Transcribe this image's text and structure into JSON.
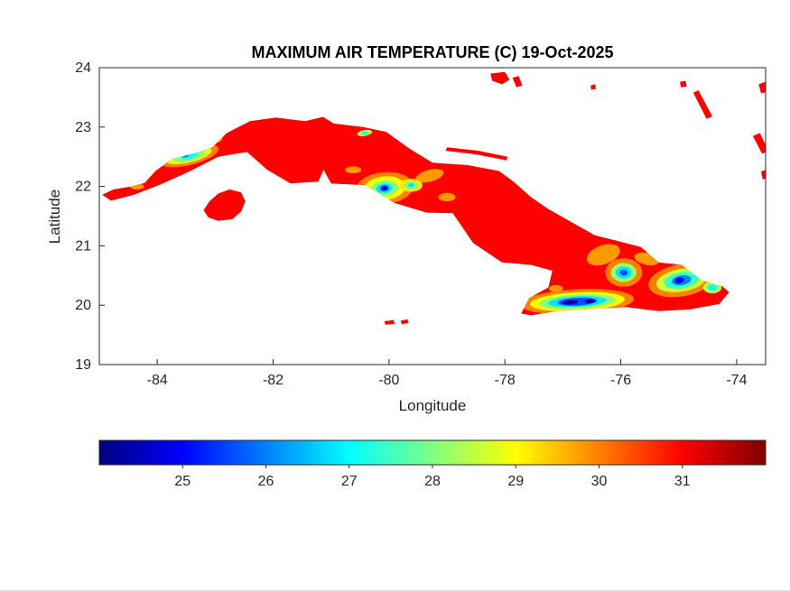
{
  "chart_data": {
    "type": "heatmap",
    "title": "MAXIMUM AIR TEMPERATURE (C) 19-Oct-2025",
    "xlabel": "Longitude",
    "ylabel": "Latitude",
    "xlim": [
      -85,
      -73.5
    ],
    "ylim": [
      19,
      24
    ],
    "xticks": [
      -84,
      -82,
      -80,
      -78,
      -76,
      -74
    ],
    "yticks": [
      19,
      20,
      21,
      22,
      23,
      24
    ],
    "grid": false,
    "legend_position": "colorbar-bottom",
    "colorbar": {
      "orientation": "horizontal",
      "colormap": "jet",
      "min": 24,
      "max": 32,
      "ticks": [
        25,
        26,
        27,
        28,
        29,
        30,
        31
      ]
    },
    "region": "Cuba",
    "base_value": 31,
    "map": {
      "outline": [
        [
          -84.95,
          21.86
        ],
        [
          -84.75,
          21.95
        ],
        [
          -84.45,
          22.0
        ],
        [
          -84.22,
          22.06
        ],
        [
          -84.03,
          22.26
        ],
        [
          -83.75,
          22.46
        ],
        [
          -83.35,
          22.56
        ],
        [
          -83.05,
          22.66
        ],
        [
          -82.8,
          22.9
        ],
        [
          -82.4,
          23.1
        ],
        [
          -81.95,
          23.16
        ],
        [
          -81.45,
          23.1
        ],
        [
          -81.14,
          23.17
        ],
        [
          -80.95,
          23.06
        ],
        [
          -80.45,
          23.0
        ],
        [
          -80.05,
          22.92
        ],
        [
          -79.65,
          22.64
        ],
        [
          -79.25,
          22.4
        ],
        [
          -78.65,
          22.36
        ],
        [
          -78.1,
          22.26
        ],
        [
          -77.85,
          22.08
        ],
        [
          -77.55,
          21.82
        ],
        [
          -77.25,
          21.62
        ],
        [
          -76.85,
          21.4
        ],
        [
          -76.45,
          21.18
        ],
        [
          -76.05,
          21.08
        ],
        [
          -75.65,
          20.98
        ],
        [
          -75.35,
          20.72
        ],
        [
          -74.95,
          20.68
        ],
        [
          -74.6,
          20.42
        ],
        [
          -74.25,
          20.32
        ],
        [
          -74.13,
          20.22
        ],
        [
          -74.3,
          20.02
        ],
        [
          -74.8,
          19.93
        ],
        [
          -75.35,
          19.9
        ],
        [
          -75.9,
          19.97
        ],
        [
          -76.45,
          19.94
        ],
        [
          -77.1,
          19.9
        ],
        [
          -77.55,
          19.83
        ],
        [
          -77.72,
          19.86
        ],
        [
          -77.58,
          20.12
        ],
        [
          -77.25,
          20.3
        ],
        [
          -77.18,
          20.58
        ],
        [
          -77.55,
          20.68
        ],
        [
          -78.05,
          20.72
        ],
        [
          -78.55,
          21.05
        ],
        [
          -78.9,
          21.55
        ],
        [
          -79.35,
          21.56
        ],
        [
          -79.9,
          21.72
        ],
        [
          -80.4,
          22.02
        ],
        [
          -81.0,
          22.05
        ],
        [
          -81.13,
          22.28
        ],
        [
          -81.22,
          22.08
        ],
        [
          -81.7,
          22.05
        ],
        [
          -82.1,
          22.28
        ],
        [
          -82.45,
          22.58
        ],
        [
          -82.95,
          22.5
        ],
        [
          -83.45,
          22.25
        ],
        [
          -83.95,
          22.03
        ],
        [
          -84.4,
          21.86
        ],
        [
          -84.8,
          21.76
        ]
      ],
      "isla_de_la_juventud": [
        [
          -83.2,
          21.6
        ],
        [
          -83.1,
          21.75
        ],
        [
          -82.95,
          21.88
        ],
        [
          -82.75,
          21.95
        ],
        [
          -82.55,
          21.9
        ],
        [
          -82.48,
          21.75
        ],
        [
          -82.55,
          21.58
        ],
        [
          -82.7,
          21.45
        ],
        [
          -82.95,
          21.42
        ],
        [
          -83.12,
          21.48
        ]
      ],
      "small_islands": [
        [
          [
            -78.25,
            23.9
          ],
          [
            -78.0,
            23.93
          ],
          [
            -77.92,
            23.8
          ],
          [
            -78.05,
            23.72
          ],
          [
            -78.22,
            23.78
          ]
        ],
        [
          [
            -77.87,
            23.83
          ],
          [
            -77.76,
            23.86
          ],
          [
            -77.7,
            23.7
          ],
          [
            -77.8,
            23.67
          ]
        ],
        [
          [
            -76.52,
            23.7
          ],
          [
            -76.44,
            23.72
          ],
          [
            -76.43,
            23.64
          ],
          [
            -76.51,
            23.63
          ]
        ],
        [
          [
            -74.98,
            23.76
          ],
          [
            -74.88,
            23.78
          ],
          [
            -74.86,
            23.68
          ],
          [
            -74.96,
            23.67
          ]
        ],
        [
          [
            -74.75,
            23.58
          ],
          [
            -74.66,
            23.62
          ],
          [
            -74.42,
            23.18
          ],
          [
            -74.52,
            23.14
          ]
        ],
        [
          [
            -73.62,
            23.72
          ],
          [
            -73.45,
            23.78
          ],
          [
            -73.4,
            23.6
          ],
          [
            -73.58,
            23.57
          ]
        ],
        [
          [
            -73.72,
            22.85
          ],
          [
            -73.6,
            22.9
          ],
          [
            -73.45,
            22.6
          ],
          [
            -73.56,
            22.55
          ]
        ],
        [
          [
            -73.58,
            22.25
          ],
          [
            -73.45,
            22.3
          ],
          [
            -73.42,
            22.15
          ],
          [
            -73.55,
            22.12
          ]
        ],
        [
          [
            -80.08,
            19.73
          ],
          [
            -79.92,
            19.75
          ],
          [
            -79.9,
            19.69
          ],
          [
            -80.06,
            19.67
          ]
        ],
        [
          [
            -79.8,
            19.74
          ],
          [
            -79.68,
            19.76
          ],
          [
            -79.66,
            19.7
          ],
          [
            -79.78,
            19.68
          ]
        ],
        [
          [
            -79.0,
            22.66
          ],
          [
            -78.45,
            22.6
          ],
          [
            -77.95,
            22.5
          ],
          [
            -77.97,
            22.44
          ],
          [
            -78.5,
            22.54
          ],
          [
            -79.02,
            22.6
          ]
        ]
      ]
    },
    "warm_patches": [
      {
        "t": 29.8,
        "cx": -79.3,
        "cy": 22.18,
        "rx": 0.25,
        "ry": 0.1,
        "rot": -15
      },
      {
        "t": 29.8,
        "cx": -79.0,
        "cy": 21.82,
        "rx": 0.15,
        "ry": 0.07,
        "rot": 0
      },
      {
        "t": 29.8,
        "cx": -80.62,
        "cy": 22.28,
        "rx": 0.14,
        "ry": 0.06,
        "rot": 0
      },
      {
        "t": 29.8,
        "cx": -76.3,
        "cy": 20.85,
        "rx": 0.3,
        "ry": 0.16,
        "rot": -20
      },
      {
        "t": 29.8,
        "cx": -75.55,
        "cy": 20.78,
        "rx": 0.22,
        "ry": 0.1,
        "rot": 12
      },
      {
        "t": 29.8,
        "cx": -77.12,
        "cy": 20.28,
        "rx": 0.12,
        "ry": 0.06,
        "rot": 0
      },
      {
        "t": 29.8,
        "cx": -83.05,
        "cy": 22.78,
        "rx": 0.18,
        "ry": 0.07,
        "rot": -12
      },
      {
        "t": 29.8,
        "cx": -84.35,
        "cy": 22.0,
        "rx": 0.12,
        "ry": 0.05,
        "rot": 0
      }
    ],
    "cool_regions": [
      {
        "name": "west-sierra",
        "cx": -83.45,
        "cy": 22.52,
        "rot": -14,
        "layers": [
          {
            "t": 30.0,
            "rx": 0.52,
            "ry": 0.16
          },
          {
            "t": 28.8,
            "rx": 0.4,
            "ry": 0.115
          },
          {
            "t": 28.0,
            "rx": 0.28,
            "ry": 0.085
          },
          {
            "t": 27.0,
            "rx": 0.14,
            "ry": 0.05
          },
          {
            "t": 26.2,
            "rx": 0.06,
            "ry": 0.03,
            "dx": -0.06
          }
        ]
      },
      {
        "name": "escambray",
        "cx": -80.08,
        "cy": 21.97,
        "rot": -6,
        "layers": [
          {
            "t": 30.0,
            "rx": 0.5,
            "ry": 0.27
          },
          {
            "t": 29.0,
            "rx": 0.36,
            "ry": 0.2
          },
          {
            "t": 28.0,
            "rx": 0.24,
            "ry": 0.13
          },
          {
            "t": 26.8,
            "rx": 0.14,
            "ry": 0.08
          },
          {
            "t": 25.4,
            "rx": 0.075,
            "ry": 0.05
          },
          {
            "t": 24.5,
            "rx": 0.035,
            "ry": 0.025
          }
        ]
      },
      {
        "name": "escambray-east",
        "cx": -79.62,
        "cy": 22.02,
        "rot": 0,
        "layers": [
          {
            "t": 29.2,
            "rx": 0.2,
            "ry": 0.11
          },
          {
            "t": 28.0,
            "rx": 0.12,
            "ry": 0.065
          },
          {
            "t": 26.8,
            "rx": 0.05,
            "ry": 0.035
          }
        ]
      },
      {
        "name": "sierra-maestra",
        "cx": -76.75,
        "cy": 20.06,
        "rot": -3,
        "layers": [
          {
            "t": 30.0,
            "rx": 0.98,
            "ry": 0.21
          },
          {
            "t": 29.0,
            "rx": 0.82,
            "ry": 0.16
          },
          {
            "t": 28.0,
            "rx": 0.66,
            "ry": 0.12
          },
          {
            "t": 26.8,
            "rx": 0.5,
            "ry": 0.09
          },
          {
            "t": 25.6,
            "rx": 0.34,
            "ry": 0.065
          },
          {
            "t": 24.4,
            "rx": 0.14,
            "ry": 0.04,
            "dx": -0.13,
            "dy": -0.01
          },
          {
            "t": 24.4,
            "rx": 0.09,
            "ry": 0.035,
            "dx": 0.22,
            "dy": 0.01
          }
        ]
      },
      {
        "name": "sierra-cristal",
        "cx": -75.95,
        "cy": 20.55,
        "rot": 0,
        "layers": [
          {
            "t": 30.0,
            "rx": 0.32,
            "ry": 0.24
          },
          {
            "t": 28.2,
            "rx": 0.22,
            "ry": 0.16
          },
          {
            "t": 26.8,
            "rx": 0.14,
            "ry": 0.1
          },
          {
            "t": 25.6,
            "rx": 0.07,
            "ry": 0.05
          }
        ]
      },
      {
        "name": "sagua-baracoa",
        "cx": -74.95,
        "cy": 20.42,
        "rot": -10,
        "layers": [
          {
            "t": 30.0,
            "rx": 0.58,
            "ry": 0.27
          },
          {
            "t": 28.6,
            "rx": 0.44,
            "ry": 0.19
          },
          {
            "t": 27.4,
            "rx": 0.3,
            "ry": 0.13
          },
          {
            "t": 26.0,
            "rx": 0.17,
            "ry": 0.08
          },
          {
            "t": 24.8,
            "rx": 0.08,
            "ry": 0.05,
            "dx": -0.04
          }
        ]
      },
      {
        "name": "east-tip",
        "cx": -74.42,
        "cy": 20.3,
        "rot": 0,
        "layers": [
          {
            "t": 28.4,
            "rx": 0.16,
            "ry": 0.1
          },
          {
            "t": 27.0,
            "rx": 0.08,
            "ry": 0.05
          }
        ]
      },
      {
        "name": "north-coast-wetland",
        "cx": -80.42,
        "cy": 22.9,
        "rot": -10,
        "layers": [
          {
            "t": 28.6,
            "rx": 0.13,
            "ry": 0.05
          },
          {
            "t": 27.2,
            "rx": 0.06,
            "ry": 0.03
          }
        ]
      }
    ]
  }
}
